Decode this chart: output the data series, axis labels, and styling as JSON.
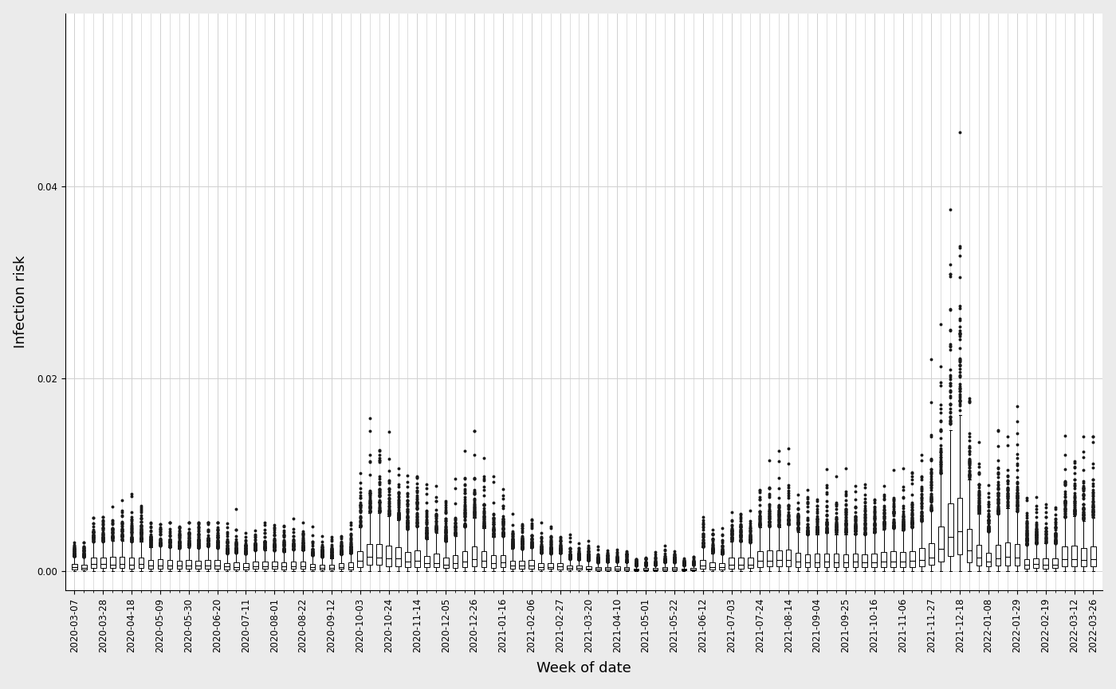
{
  "title": "",
  "xlabel": "Week of date",
  "ylabel": "Infection risk",
  "ylim": [
    -0.002,
    0.058
  ],
  "background_color": "#ebebeb",
  "plot_background": "#ffffff",
  "grid_color": "#d0d0d0",
  "xlabel_fontsize": 13,
  "ylabel_fontsize": 13,
  "tick_fontsize": 8.5,
  "weeks": [
    "2020-03-07",
    "2020-03-14",
    "2020-03-21",
    "2020-03-28",
    "2020-04-04",
    "2020-04-11",
    "2020-04-18",
    "2020-04-25",
    "2020-05-02",
    "2020-05-09",
    "2020-05-16",
    "2020-05-23",
    "2020-05-30",
    "2020-06-06",
    "2020-06-13",
    "2020-06-20",
    "2020-06-27",
    "2020-07-04",
    "2020-07-11",
    "2020-07-18",
    "2020-07-25",
    "2020-08-01",
    "2020-08-08",
    "2020-08-15",
    "2020-08-22",
    "2020-08-29",
    "2020-09-05",
    "2020-09-12",
    "2020-09-19",
    "2020-09-26",
    "2020-10-03",
    "2020-10-10",
    "2020-10-17",
    "2020-10-24",
    "2020-10-31",
    "2020-11-07",
    "2020-11-14",
    "2020-11-21",
    "2020-11-28",
    "2020-12-05",
    "2020-12-12",
    "2020-12-19",
    "2020-12-26",
    "2021-01-02",
    "2021-01-09",
    "2021-01-16",
    "2021-01-23",
    "2021-01-30",
    "2021-02-06",
    "2021-02-13",
    "2021-02-20",
    "2021-02-27",
    "2021-03-06",
    "2021-03-13",
    "2021-03-20",
    "2021-03-27",
    "2021-04-03",
    "2021-04-10",
    "2021-04-17",
    "2021-04-24",
    "2021-05-01",
    "2021-05-08",
    "2021-05-15",
    "2021-05-22",
    "2021-05-29",
    "2021-06-05",
    "2021-06-12",
    "2021-06-19",
    "2021-06-26",
    "2021-07-03",
    "2021-07-10",
    "2021-07-17",
    "2021-07-24",
    "2021-07-31",
    "2021-08-07",
    "2021-08-14",
    "2021-08-21",
    "2021-08-28",
    "2021-09-04",
    "2021-09-11",
    "2021-09-18",
    "2021-09-25",
    "2021-10-02",
    "2021-10-09",
    "2021-10-16",
    "2021-10-23",
    "2021-10-30",
    "2021-11-06",
    "2021-11-13",
    "2021-11-20",
    "2021-11-27",
    "2021-12-04",
    "2021-12-11",
    "2021-12-18",
    "2021-12-25",
    "2022-01-01",
    "2022-01-08",
    "2022-01-15",
    "2022-01-22",
    "2022-01-29",
    "2022-02-05",
    "2022-02-12",
    "2022-02-19",
    "2022-02-26",
    "2022-03-05",
    "2022-03-12",
    "2022-03-19",
    "2022-03-26"
  ],
  "tick_weeks": [
    "2020-03-07",
    "2020-03-28",
    "2020-04-18",
    "2020-05-09",
    "2020-05-30",
    "2020-06-20",
    "2020-07-11",
    "2020-08-01",
    "2020-08-22",
    "2020-09-12",
    "2020-10-03",
    "2020-10-24",
    "2020-11-14",
    "2020-12-05",
    "2020-12-26",
    "2021-01-16",
    "2021-02-06",
    "2021-02-27",
    "2021-03-20",
    "2021-04-10",
    "2021-05-01",
    "2021-05-22",
    "2021-06-12",
    "2021-07-03",
    "2021-07-24",
    "2021-08-14",
    "2021-09-04",
    "2021-09-25",
    "2021-10-16",
    "2021-11-06",
    "2021-11-27",
    "2021-12-18",
    "2022-01-08",
    "2022-01-29",
    "2022-02-19",
    "2022-03-12",
    "2022-03-26"
  ]
}
